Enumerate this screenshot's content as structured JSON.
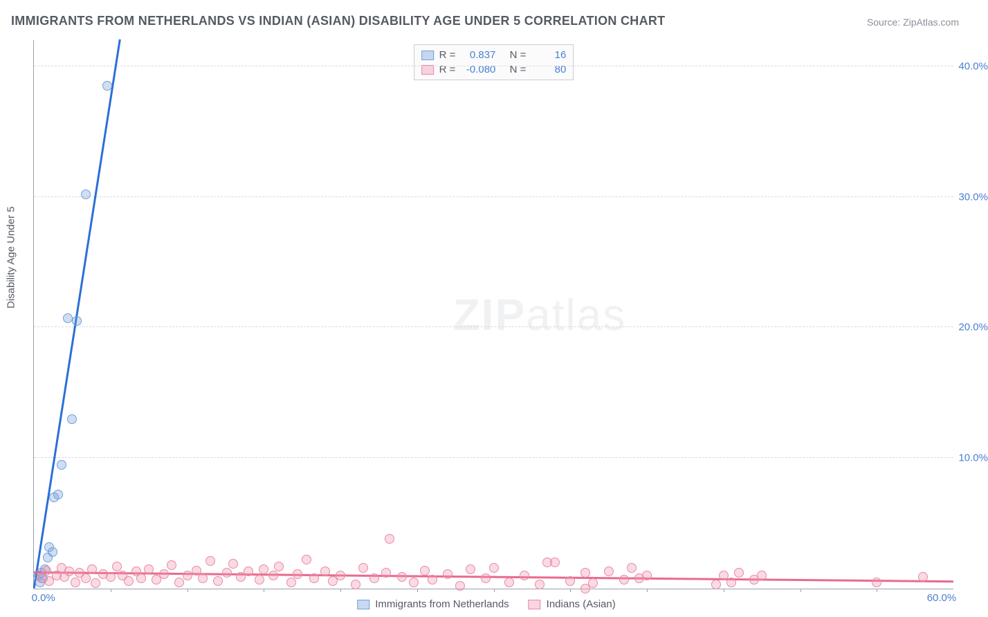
{
  "title": "IMMIGRANTS FROM NETHERLANDS VS INDIAN (ASIAN) DISABILITY AGE UNDER 5 CORRELATION CHART",
  "source": "Source: ZipAtlas.com",
  "y_axis_label": "Disability Age Under 5",
  "watermark_bold": "ZIP",
  "watermark_rest": "atlas",
  "chart": {
    "type": "scatter",
    "xlim": [
      0,
      60
    ],
    "ylim": [
      0,
      42
    ],
    "x_ticks": [
      0,
      60
    ],
    "x_tick_labels": [
      "0.0%",
      "60.0%"
    ],
    "x_minor_tick_step": 5,
    "y_ticks": [
      10,
      20,
      30,
      40
    ],
    "y_tick_labels": [
      "10.0%",
      "20.0%",
      "30.0%",
      "40.0%"
    ],
    "grid_color": "#d6d9dd",
    "axis_color": "#9aa0a8",
    "background": "#ffffff",
    "series": [
      {
        "name": "Immigrants from Netherlands",
        "color_fill": "rgba(120,160,220,0.35)",
        "color_stroke": "#6f9fd8",
        "marker_size": 14,
        "R": 0.837,
        "N": 16,
        "trend": {
          "x1": 0,
          "y1": 0,
          "x2": 5.6,
          "y2": 42,
          "color": "#2a6fd6",
          "width": 2.5
        },
        "points": [
          [
            0.3,
            1.0
          ],
          [
            0.4,
            0.5
          ],
          [
            0.5,
            1.2
          ],
          [
            0.6,
            0.8
          ],
          [
            0.7,
            1.5
          ],
          [
            0.9,
            2.4
          ],
          [
            1.2,
            2.8
          ],
          [
            1.3,
            7.0
          ],
          [
            1.6,
            7.2
          ],
          [
            1.8,
            9.5
          ],
          [
            2.5,
            13.0
          ],
          [
            2.2,
            20.7
          ],
          [
            2.8,
            20.5
          ],
          [
            3.4,
            30.2
          ],
          [
            4.8,
            38.5
          ],
          [
            1.0,
            3.2
          ]
        ]
      },
      {
        "name": "Indians (Asian)",
        "color_fill": "rgba(240,150,175,0.35)",
        "color_stroke": "#e989a5",
        "marker_size": 14,
        "R": -0.08,
        "N": 80,
        "trend": {
          "x1": 0,
          "y1": 1.2,
          "x2": 60,
          "y2": 0.5,
          "color": "#e86a8e",
          "width": 2.5
        },
        "points": [
          [
            0.5,
            0.8
          ],
          [
            0.8,
            1.4
          ],
          [
            1.0,
            0.6
          ],
          [
            1.5,
            1.0
          ],
          [
            1.8,
            1.6
          ],
          [
            2.0,
            0.9
          ],
          [
            2.3,
            1.3
          ],
          [
            2.7,
            0.5
          ],
          [
            3.0,
            1.2
          ],
          [
            3.4,
            0.8
          ],
          [
            3.8,
            1.5
          ],
          [
            4.0,
            0.4
          ],
          [
            4.5,
            1.1
          ],
          [
            5.0,
            0.9
          ],
          [
            5.4,
            1.7
          ],
          [
            5.8,
            1.0
          ],
          [
            6.2,
            0.6
          ],
          [
            6.7,
            1.3
          ],
          [
            7.0,
            0.8
          ],
          [
            7.5,
            1.5
          ],
          [
            8.0,
            0.7
          ],
          [
            8.5,
            1.1
          ],
          [
            9.0,
            1.8
          ],
          [
            9.5,
            0.5
          ],
          [
            10.0,
            1.0
          ],
          [
            10.6,
            1.4
          ],
          [
            11.0,
            0.8
          ],
          [
            11.5,
            2.1
          ],
          [
            12.0,
            0.6
          ],
          [
            12.6,
            1.2
          ],
          [
            13.0,
            1.9
          ],
          [
            13.5,
            0.9
          ],
          [
            14.0,
            1.3
          ],
          [
            14.7,
            0.7
          ],
          [
            15.0,
            1.5
          ],
          [
            15.6,
            1.0
          ],
          [
            16.0,
            1.7
          ],
          [
            16.8,
            0.5
          ],
          [
            17.2,
            1.1
          ],
          [
            17.8,
            2.2
          ],
          [
            18.3,
            0.8
          ],
          [
            19.0,
            1.3
          ],
          [
            19.5,
            0.6
          ],
          [
            20.0,
            1.0
          ],
          [
            21.0,
            0.3
          ],
          [
            21.5,
            1.6
          ],
          [
            22.2,
            0.8
          ],
          [
            23.0,
            1.2
          ],
          [
            23.2,
            3.8
          ],
          [
            24.0,
            0.9
          ],
          [
            24.8,
            0.5
          ],
          [
            25.5,
            1.4
          ],
          [
            26.0,
            0.7
          ],
          [
            27.0,
            1.1
          ],
          [
            27.8,
            0.2
          ],
          [
            28.5,
            1.5
          ],
          [
            29.5,
            0.8
          ],
          [
            30.0,
            1.6
          ],
          [
            31.0,
            0.5
          ],
          [
            32.0,
            1.0
          ],
          [
            33.0,
            0.3
          ],
          [
            33.5,
            2.0
          ],
          [
            34.0,
            2.0
          ],
          [
            35.0,
            0.6
          ],
          [
            36.0,
            1.2
          ],
          [
            36.5,
            0.4
          ],
          [
            37.5,
            1.3
          ],
          [
            38.5,
            0.7
          ],
          [
            39.0,
            1.6
          ],
          [
            39.5,
            0.8
          ],
          [
            40.0,
            1.0
          ],
          [
            44.5,
            0.3
          ],
          [
            45.0,
            1.0
          ],
          [
            45.5,
            0.5
          ],
          [
            46.0,
            1.2
          ],
          [
            47.0,
            0.7
          ],
          [
            47.5,
            1.0
          ],
          [
            55.0,
            0.5
          ],
          [
            58.0,
            0.9
          ],
          [
            36.0,
            0.0
          ]
        ]
      }
    ]
  },
  "legend_top": [
    {
      "swatch": "blue",
      "r_label": "R =",
      "r_val": "0.837",
      "n_label": "N =",
      "n_val": "16"
    },
    {
      "swatch": "pink",
      "r_label": "R =",
      "r_val": "-0.080",
      "n_label": "N =",
      "n_val": "80"
    }
  ],
  "legend_bottom": [
    {
      "swatch": "blue",
      "label": "Immigrants from Netherlands"
    },
    {
      "swatch": "pink",
      "label": "Indians (Asian)"
    }
  ]
}
